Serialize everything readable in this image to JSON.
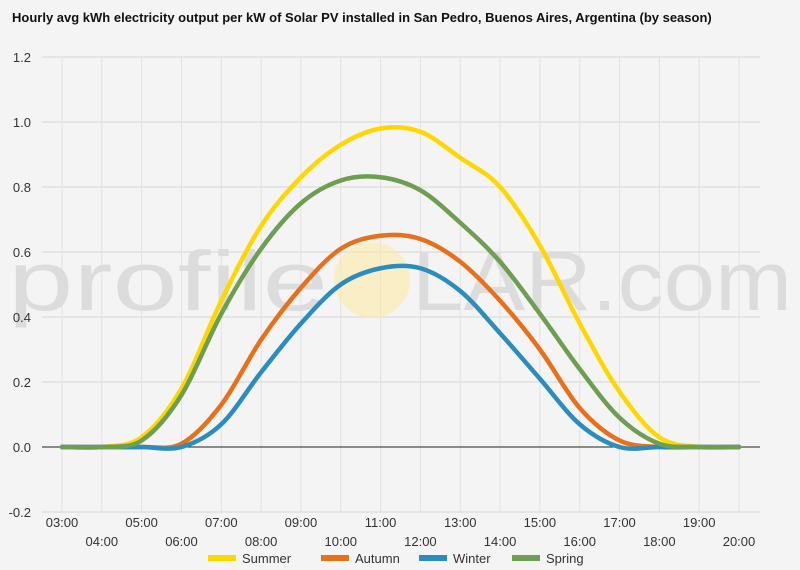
{
  "chart_data": {
    "type": "line",
    "title": "Hourly avg kWh electricity output per kW of Solar PV installed in San Pedro, Buenos Aires, Argentina (by season)",
    "xlabel": "",
    "ylabel": "",
    "ylim": [
      -0.2,
      1.2
    ],
    "yticks": [
      "-0.2",
      "0.0",
      "0.2",
      "0.4",
      "0.6",
      "0.8",
      "1.0",
      "1.2"
    ],
    "categories": [
      "03:00",
      "04:00",
      "05:00",
      "06:00",
      "07:00",
      "08:00",
      "09:00",
      "10:00",
      "11:00",
      "12:00",
      "13:00",
      "14:00",
      "15:00",
      "16:00",
      "17:00",
      "18:00",
      "19:00",
      "20:00"
    ],
    "grid": true,
    "legend_position": "bottom",
    "series": [
      {
        "name": "Summer",
        "color": "#FFD700",
        "values": [
          0,
          0,
          0.03,
          0.18,
          0.45,
          0.68,
          0.83,
          0.93,
          0.98,
          0.97,
          0.89,
          0.8,
          0.62,
          0.38,
          0.17,
          0.03,
          0,
          0
        ]
      },
      {
        "name": "Autumn",
        "color": "#E8701A",
        "values": [
          0,
          0,
          0,
          0.01,
          0.13,
          0.33,
          0.49,
          0.61,
          0.65,
          0.64,
          0.57,
          0.45,
          0.3,
          0.12,
          0.02,
          0,
          0,
          0
        ]
      },
      {
        "name": "Winter",
        "color": "#2B8CBE",
        "values": [
          0,
          0,
          0,
          0,
          0.07,
          0.23,
          0.38,
          0.5,
          0.55,
          0.55,
          0.48,
          0.35,
          0.21,
          0.07,
          0,
          0,
          0,
          0
        ]
      },
      {
        "name": "Spring",
        "color": "#6E9E52",
        "values": [
          0,
          0,
          0.02,
          0.16,
          0.41,
          0.61,
          0.75,
          0.82,
          0.83,
          0.79,
          0.69,
          0.57,
          0.41,
          0.24,
          0.09,
          0.01,
          0,
          0
        ]
      }
    ]
  },
  "watermark": {
    "left": "profile",
    "right": "LAR.com",
    "sun_color": "#FFE9A0"
  }
}
